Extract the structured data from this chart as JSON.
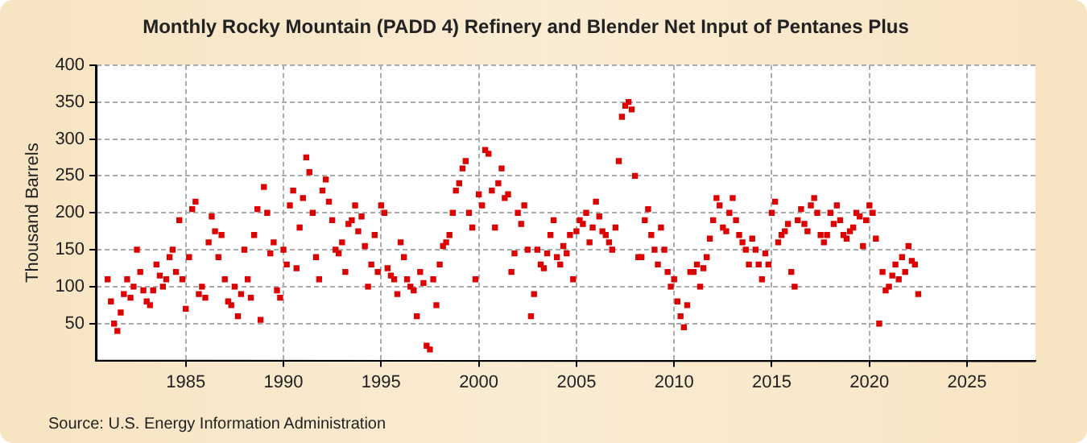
{
  "chart_data": {
    "type": "scatter",
    "title": "Monthly Rocky Mountain (PADD 4) Refinery and Blender Net Input of Pentanes Plus",
    "ylabel": "Thousand Barrels",
    "annotations": [
      "Source: U.S. Energy Information Administration"
    ],
    "x": [
      1981,
      1981.17,
      1981.33,
      1981.5,
      1981.67,
      1981.83,
      1982,
      1982.17,
      1982.33,
      1982.5,
      1982.67,
      1982.83,
      1983,
      1983.17,
      1983.33,
      1983.5,
      1983.67,
      1983.83,
      1984,
      1984.17,
      1984.33,
      1984.5,
      1984.67,
      1984.83,
      1985,
      1985.17,
      1985.33,
      1985.5,
      1985.67,
      1985.83,
      1986,
      1986.17,
      1986.33,
      1986.5,
      1986.67,
      1986.83,
      1987,
      1987.17,
      1987.33,
      1987.5,
      1987.67,
      1987.83,
      1988,
      1988.17,
      1988.33,
      1988.5,
      1988.67,
      1988.83,
      1989,
      1989.17,
      1989.33,
      1989.5,
      1989.67,
      1989.83,
      1990,
      1990.17,
      1990.33,
      1990.5,
      1990.67,
      1990.83,
      1991,
      1991.17,
      1991.33,
      1991.5,
      1991.67,
      1991.83,
      1992,
      1992.17,
      1992.33,
      1992.5,
      1992.67,
      1992.83,
      1993,
      1993.17,
      1993.33,
      1993.5,
      1993.67,
      1993.83,
      1994,
      1994.17,
      1994.33,
      1994.5,
      1994.67,
      1994.83,
      1995,
      1995.17,
      1995.33,
      1995.5,
      1995.67,
      1995.83,
      1996,
      1996.17,
      1996.33,
      1996.5,
      1996.67,
      1996.83,
      1997,
      1997.17,
      1997.33,
      1997.5,
      1997.67,
      1997.83,
      1998,
      1998.17,
      1998.33,
      1998.5,
      1998.67,
      1998.83,
      1999,
      1999.17,
      1999.33,
      1999.5,
      1999.67,
      1999.83,
      2000,
      2000.17,
      2000.33,
      2000.5,
      2000.67,
      2000.83,
      2001,
      2001.17,
      2001.33,
      2001.5,
      2001.67,
      2001.83,
      2002,
      2002.17,
      2002.33,
      2002.5,
      2002.67,
      2002.83,
      2003,
      2003.17,
      2003.33,
      2003.5,
      2003.67,
      2003.83,
      2004,
      2004.17,
      2004.33,
      2004.5,
      2004.67,
      2004.83,
      2005,
      2005.17,
      2005.33,
      2005.5,
      2005.67,
      2005.83,
      2006,
      2006.17,
      2006.33,
      2006.5,
      2006.67,
      2006.83,
      2007,
      2007.17,
      2007.33,
      2007.5,
      2007.67,
      2007.83,
      2008,
      2008.17,
      2008.33,
      2008.5,
      2008.67,
      2008.83,
      2009,
      2009.17,
      2009.33,
      2009.5,
      2009.67,
      2009.83,
      2010,
      2010.17,
      2010.33,
      2010.5,
      2010.67,
      2010.83,
      2011,
      2011.17,
      2011.33,
      2011.5,
      2011.67,
      2011.83,
      2012,
      2012.17,
      2012.33,
      2012.5,
      2012.67,
      2012.83,
      2013,
      2013.17,
      2013.33,
      2013.5,
      2013.67,
      2013.83,
      2014,
      2014.17,
      2014.33,
      2014.5,
      2014.67,
      2014.83,
      2015,
      2015.17,
      2015.33,
      2015.5,
      2015.67,
      2015.83,
      2016,
      2016.17,
      2016.33,
      2016.5,
      2016.67,
      2016.83,
      2017,
      2017.17,
      2017.33,
      2017.5,
      2017.67,
      2017.83,
      2018,
      2018.17,
      2018.33,
      2018.5,
      2018.67,
      2018.83,
      2019,
      2019.17,
      2019.33,
      2019.5,
      2019.67,
      2019.83,
      2020,
      2020.17,
      2020.33,
      2020.5,
      2020.67,
      2020.83,
      2021,
      2021.17,
      2021.33,
      2021.5,
      2021.67,
      2021.83,
      2022,
      2022.17,
      2022.33,
      2022.5
    ],
    "series": [
      {
        "color": "#dd0000",
        "values": [
          110,
          80,
          50,
          40,
          65,
          90,
          110,
          85,
          100,
          150,
          120,
          95,
          80,
          75,
          95,
          130,
          115,
          100,
          110,
          140,
          150,
          120,
          190,
          110,
          70,
          140,
          205,
          215,
          90,
          100,
          85,
          160,
          195,
          175,
          140,
          170,
          110,
          80,
          75,
          100,
          60,
          90,
          150,
          110,
          85,
          170,
          205,
          55,
          235,
          200,
          145,
          160,
          95,
          85,
          150,
          130,
          210,
          230,
          125,
          180,
          220,
          275,
          255,
          200,
          140,
          110,
          230,
          245,
          215,
          190,
          150,
          145,
          160,
          120,
          185,
          190,
          210,
          175,
          195,
          155,
          100,
          130,
          170,
          120,
          210,
          200,
          125,
          115,
          110,
          90,
          160,
          140,
          110,
          100,
          95,
          60,
          120,
          105,
          20,
          15,
          110,
          75,
          130,
          155,
          160,
          170,
          200,
          230,
          240,
          260,
          270,
          200,
          180,
          110,
          225,
          210,
          285,
          280,
          230,
          180,
          240,
          260,
          220,
          225,
          120,
          145,
          200,
          185,
          210,
          150,
          60,
          90,
          150,
          130,
          125,
          145,
          170,
          190,
          140,
          130,
          155,
          145,
          170,
          110,
          175,
          190,
          185,
          200,
          160,
          180,
          215,
          195,
          175,
          170,
          160,
          150,
          180,
          270,
          330,
          345,
          350,
          340,
          250,
          140,
          140,
          190,
          205,
          170,
          150,
          130,
          180,
          150,
          120,
          100,
          110,
          80,
          60,
          45,
          75,
          120,
          120,
          130,
          100,
          125,
          140,
          165,
          190,
          220,
          210,
          180,
          175,
          200,
          220,
          190,
          170,
          160,
          150,
          130,
          165,
          150,
          130,
          110,
          145,
          130,
          200,
          215,
          160,
          170,
          175,
          185,
          120,
          100,
          190,
          205,
          185,
          175,
          210,
          220,
          200,
          170,
          160,
          170,
          200,
          185,
          210,
          190,
          170,
          165,
          175,
          180,
          200,
          195,
          155,
          190,
          210,
          200,
          165,
          50,
          120,
          95,
          100,
          115,
          130,
          110,
          140,
          120,
          155,
          135,
          130,
          90
        ]
      }
    ],
    "xlim": [
      1980.4,
      2028.5
    ],
    "ylim": [
      0,
      400
    ],
    "xticks": [
      1985,
      1990,
      1995,
      2000,
      2005,
      2010,
      2015,
      2020,
      2025
    ],
    "yticks": [
      50,
      100,
      150,
      200,
      250,
      300,
      350,
      400
    ],
    "grid": true,
    "legend": false,
    "marker": "square"
  }
}
